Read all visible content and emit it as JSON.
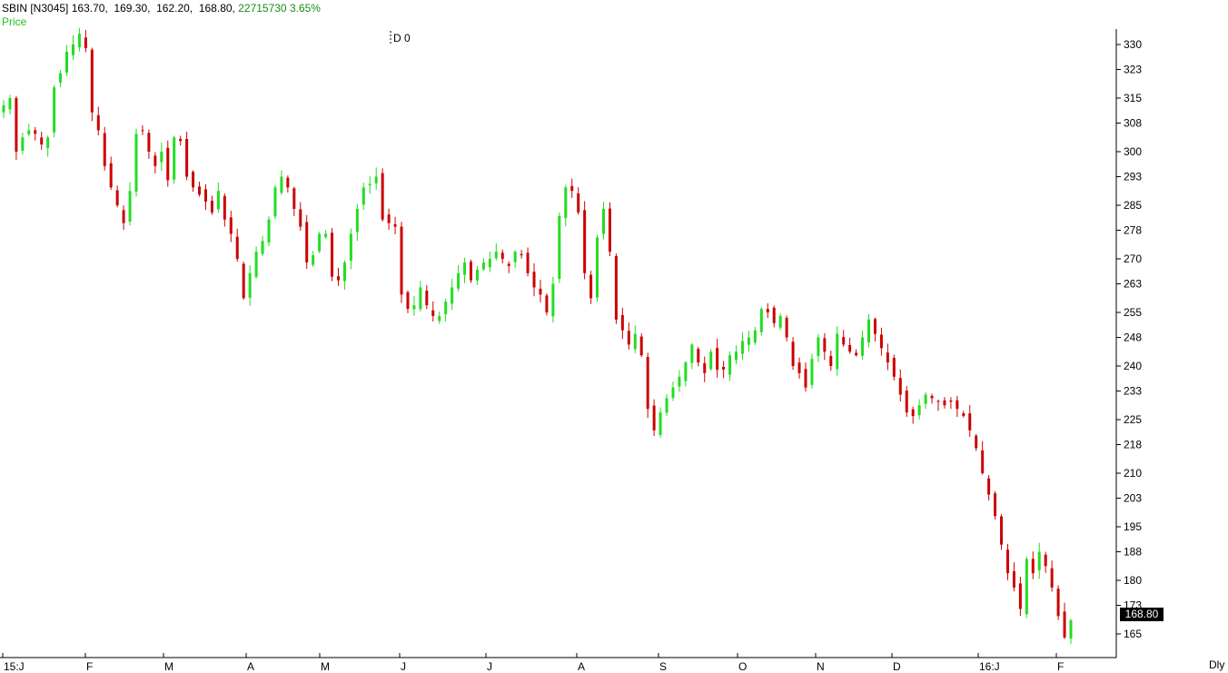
{
  "header": {
    "symbol": "SBIN [N3045]",
    "ohlc": "163.70,  169.30,  162.20,  168.80,",
    "volume": "22715730",
    "change": "3.65%",
    "indicator": "Price"
  },
  "marker_label": "D 0",
  "period_label": "Dly",
  "last_price_label": "168.80",
  "colors": {
    "up": "#22dd22",
    "down": "#cc0000",
    "axis": "#000000"
  },
  "chart_data": {
    "type": "candlestick",
    "y_ticks": [
      330,
      323,
      315,
      308,
      300,
      293,
      285,
      278,
      270,
      263,
      255,
      248,
      240,
      233,
      225,
      218,
      210,
      203,
      195,
      188,
      180,
      173,
      165
    ],
    "x_labels": [
      "15:J",
      "F",
      "M",
      "A",
      "M",
      "J",
      "J",
      "A",
      "S",
      "O",
      "N",
      "D",
      "16:J",
      "F"
    ],
    "last_close": 168.8,
    "closes": [
      313,
      315,
      300,
      304,
      306,
      305,
      302,
      304,
      318,
      322,
      328,
      330,
      333,
      329,
      311,
      306,
      296,
      290,
      285,
      280,
      289,
      305,
      306,
      300,
      296,
      300,
      292,
      304,
      303,
      293,
      290,
      288,
      286,
      283,
      289,
      281,
      277,
      270,
      259,
      266,
      272,
      275,
      281,
      290,
      293,
      290,
      284,
      279,
      269,
      271,
      277,
      277,
      265,
      264,
      269,
      277,
      284,
      290,
      291,
      293,
      281,
      280,
      279,
      260,
      256,
      257,
      262,
      257,
      254,
      254,
      258,
      262,
      266,
      269,
      264,
      267,
      269,
      270,
      272,
      270,
      268,
      272,
      271,
      266,
      262,
      260,
      255,
      263,
      282,
      290,
      289,
      283,
      266,
      259,
      276,
      284,
      272,
      253,
      250,
      246,
      249,
      243,
      228,
      222,
      227,
      231,
      234,
      237,
      241,
      246,
      241,
      238,
      244,
      239,
      239,
      243,
      244,
      247,
      248,
      250,
      256,
      255,
      252,
      254,
      248,
      240,
      238,
      234,
      242,
      248,
      244,
      240,
      249,
      246,
      244,
      243,
      248,
      253,
      249,
      245,
      241,
      237,
      232,
      227,
      226,
      229,
      232,
      231,
      230,
      229,
      230,
      228,
      226,
      222,
      217,
      210,
      204,
      198,
      190,
      182,
      178,
      172,
      186,
      182,
      188,
      184,
      178,
      170,
      164,
      168.8
    ]
  }
}
